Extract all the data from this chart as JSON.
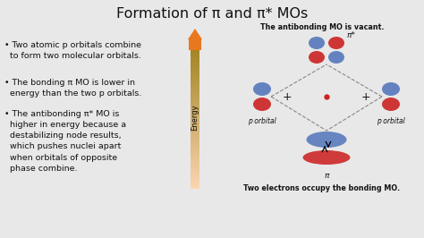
{
  "title": "Formation of π and π* MOs",
  "background_color": "#e8e8e8",
  "bullet_points": [
    "• Two atomic p orbitals combine\n  to form two molecular orbitals.",
    "• The bonding π MO is lower in\n  energy than the two p orbitals.",
    "• The antibonding π* MO is\n  higher in energy because a\n  destabilizing node results,\n  which pushes nuclei apart\n  when orbitals of opposite\n  phase combine."
  ],
  "label_antibonding": "The antibonding MO is vacant.",
  "label_bonding": "Two electrons occupy the bonding MO.",
  "label_pi_star": "π*",
  "label_pi": "π",
  "label_p_orbital_left": "p orbital",
  "label_p_orbital_right": "p orbital",
  "label_energy": "Energy",
  "arrow_color_bottom": "#f9d4b0",
  "arrow_color_top": "#e87820",
  "blue_color": "#5577bb",
  "red_color": "#cc2222",
  "text_color": "#111111",
  "title_fontsize": 11.5,
  "bullet_fontsize": 6.8,
  "label_fontsize": 5.8,
  "small_fontsize": 5.5,
  "energy_fontsize": 6.0
}
